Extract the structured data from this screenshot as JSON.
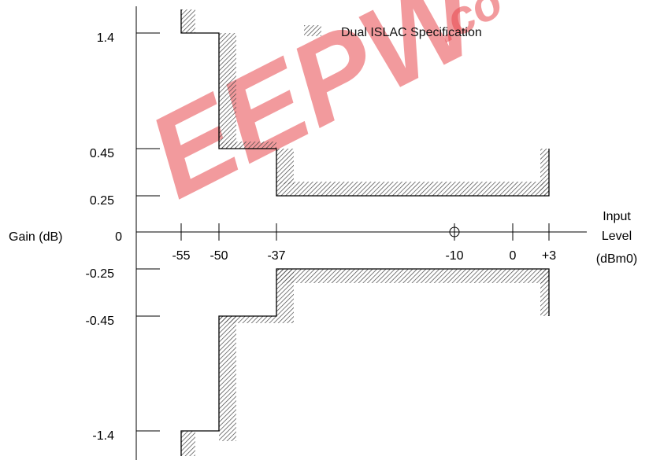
{
  "chart_data": {
    "type": "line",
    "title": "",
    "ylabel": "Gain (dB)",
    "xlabel_lines": [
      "Input",
      "Level",
      "(dBm0)"
    ],
    "legend": {
      "label": "Dual ISLAC Specification",
      "placement": "top-right"
    },
    "watermark": "EEPW",
    "watermark_suffix": ".co",
    "x_ticks": [
      {
        "value": -55,
        "label": "-55"
      },
      {
        "value": -50,
        "label": "-50"
      },
      {
        "value": -37,
        "label": "-37"
      },
      {
        "value": -10,
        "label": "-10"
      },
      {
        "value": 0,
        "label": "0"
      },
      {
        "value": 3,
        "label": "+3"
      }
    ],
    "y_ticks": [
      {
        "value": 1.4,
        "label": "1.4"
      },
      {
        "value": 0.45,
        "label": "0.45"
      },
      {
        "value": 0.25,
        "label": "0.25"
      },
      {
        "value": 0,
        "label": "0"
      },
      {
        "value": -0.25,
        "label": "-0.25"
      },
      {
        "value": -0.45,
        "label": "-0.45"
      },
      {
        "value": -1.4,
        "label": "-1.4"
      }
    ],
    "reference_point": {
      "x": -10,
      "y": 0
    },
    "series": [
      {
        "role": "upper-limit",
        "points": [
          [
            -55,
            1.6
          ],
          [
            -55,
            1.4
          ],
          [
            -50,
            1.4
          ],
          [
            -50,
            0.45
          ],
          [
            -37,
            0.45
          ],
          [
            -37,
            0.25
          ],
          [
            3,
            0.25
          ],
          [
            3,
            0.45
          ]
        ]
      },
      {
        "role": "lower-limit",
        "points": [
          [
            -55,
            -1.6
          ],
          [
            -55,
            -1.4
          ],
          [
            -50,
            -1.4
          ],
          [
            -50,
            -0.45
          ],
          [
            -37,
            -0.45
          ],
          [
            -37,
            -0.25
          ],
          [
            3,
            -0.25
          ],
          [
            3,
            -0.45
          ]
        ]
      }
    ],
    "colors": {
      "axis": "#000000",
      "hatch": "#444444",
      "watermark": "#e8484e"
    }
  }
}
